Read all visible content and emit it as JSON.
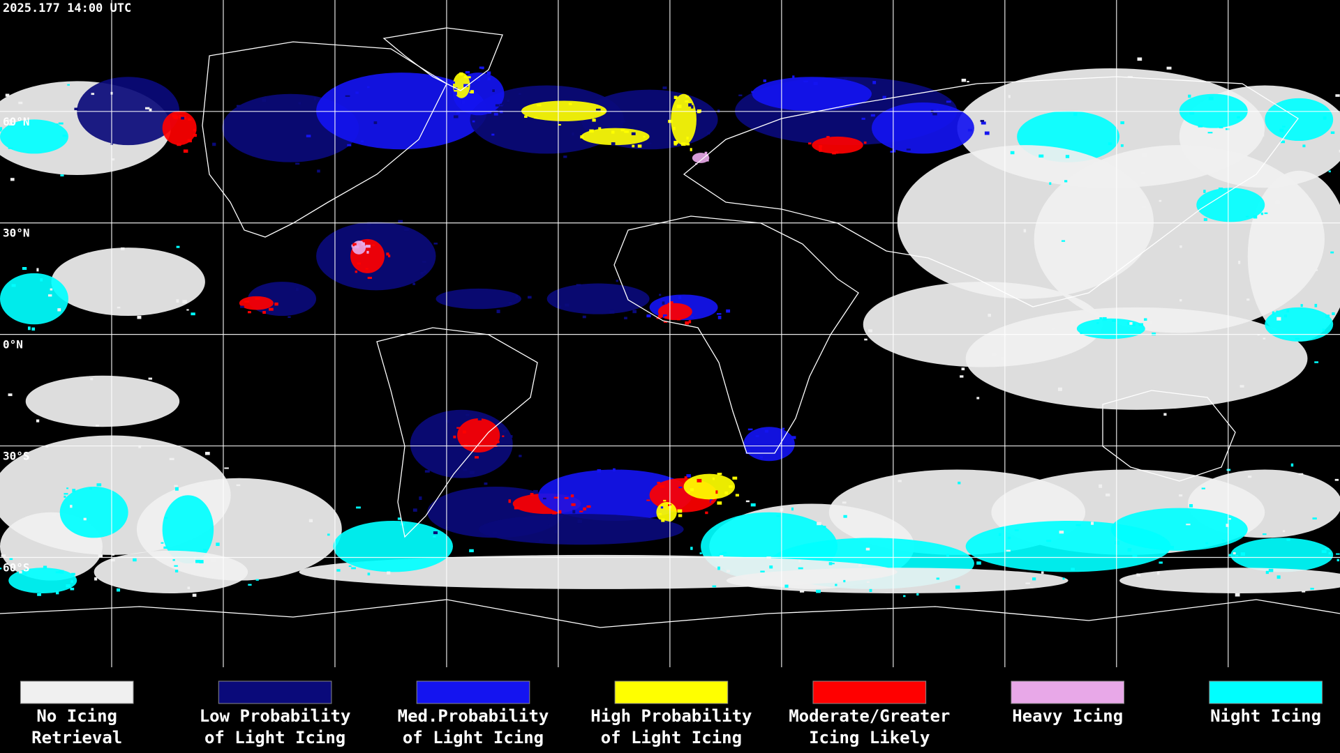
{
  "timestamp": "2025.177 14:00 UTC",
  "latitude_labels": [
    "60°N",
    "30°N",
    "0°N",
    "30°S",
    "60°S"
  ],
  "legend": [
    {
      "label": [
        "No Icing",
        "Retrieval"
      ],
      "color": "#f0f0f0"
    },
    {
      "label": [
        "Low Probability",
        "of Light Icing"
      ],
      "color": "#0a0a7a"
    },
    {
      "label": [
        "Med.Probability",
        "of Light Icing"
      ],
      "color": "#1414f0"
    },
    {
      "label": [
        "High Probability",
        "of Light Icing"
      ],
      "color": "#ffff00"
    },
    {
      "label": [
        "Moderate/Greater",
        "Icing Likely"
      ],
      "color": "#ff0000"
    },
    {
      "label": [
        "Heavy Icing"
      ],
      "color": "#e8a8e8"
    },
    {
      "label": [
        "Night Icing"
      ],
      "color": "#00ffff"
    }
  ]
}
